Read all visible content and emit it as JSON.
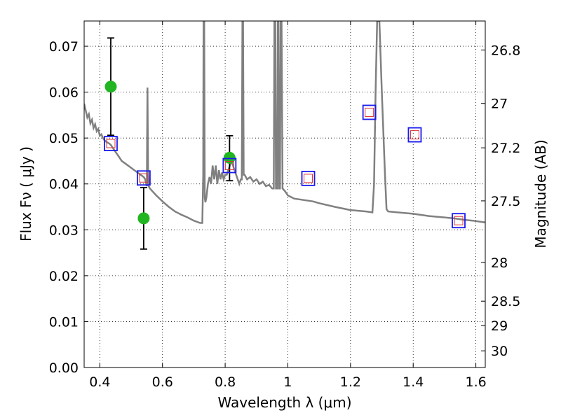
{
  "chart_data": {
    "type": "scatter",
    "title": "",
    "xlabel": "Wavelength  λ (μm)",
    "ylabel": "Flux  Fν  ( μJy )",
    "ylabel_right": "Magnitude (AB)",
    "xlim": [
      0.35,
      1.63
    ],
    "ylim": [
      0.0,
      0.0755
    ],
    "grid": true,
    "x_ticks": [
      0.4,
      0.6,
      0.8,
      1.0,
      1.2,
      1.4,
      1.6
    ],
    "x_tick_labels": [
      "0.4",
      "0.6",
      "0.8",
      "1",
      "1.2",
      "1.4",
      "1.6"
    ],
    "y_ticks": [
      0.0,
      0.01,
      0.02,
      0.03,
      0.04,
      0.05,
      0.06,
      0.07
    ],
    "y_tick_labels": [
      "0.00",
      "0.01",
      "0.02",
      "0.03",
      "0.04",
      "0.05",
      "0.06",
      "0.07"
    ],
    "mag_ticks": [
      26.8,
      27,
      27.2,
      27.5,
      28,
      28.5,
      29,
      30
    ],
    "mag_tick_labels": [
      "26.8",
      "27",
      "27.2",
      "27.5",
      "28",
      "28.5",
      "29",
      "30"
    ],
    "colors": {
      "model": "#808080",
      "observed": "#22b522",
      "model_box": "#1a1aee",
      "model_box_inner": "#dd3333",
      "errorbar": "#000000"
    },
    "series": [
      {
        "kind": "model_spectrum",
        "points": [
          [
            0.35,
            0.0575
          ],
          [
            0.355,
            0.056
          ],
          [
            0.36,
            0.0545
          ],
          [
            0.365,
            0.0552
          ],
          [
            0.37,
            0.0532
          ],
          [
            0.375,
            0.054
          ],
          [
            0.38,
            0.0522
          ],
          [
            0.385,
            0.053
          ],
          [
            0.39,
            0.0515
          ],
          [
            0.395,
            0.052
          ],
          [
            0.4,
            0.0505
          ],
          [
            0.405,
            0.0508
          ],
          [
            0.41,
            0.05
          ],
          [
            0.415,
            0.0495
          ],
          [
            0.42,
            0.0492
          ],
          [
            0.425,
            0.049
          ],
          [
            0.43,
            0.0488
          ],
          [
            0.435,
            0.0485
          ],
          [
            0.44,
            0.048
          ],
          [
            0.445,
            0.0475
          ],
          [
            0.45,
            0.047
          ],
          [
            0.455,
            0.0465
          ],
          [
            0.46,
            0.046
          ],
          [
            0.465,
            0.0455
          ],
          [
            0.47,
            0.045
          ],
          [
            0.48,
            0.0445
          ],
          [
            0.49,
            0.044
          ],
          [
            0.5,
            0.0435
          ],
          [
            0.51,
            0.043
          ],
          [
            0.52,
            0.0425
          ],
          [
            0.53,
            0.042
          ],
          [
            0.54,
            0.0415
          ],
          [
            0.545,
            0.041
          ],
          [
            0.548,
            0.04
          ],
          [
            0.55,
            0.0395
          ],
          [
            0.551,
            0.05
          ],
          [
            0.552,
            0.061
          ],
          [
            0.554,
            0.042
          ],
          [
            0.556,
            0.0395
          ],
          [
            0.56,
            0.039
          ],
          [
            0.58,
            0.0375
          ],
          [
            0.6,
            0.0362
          ],
          [
            0.62,
            0.035
          ],
          [
            0.64,
            0.034
          ],
          [
            0.66,
            0.0333
          ],
          [
            0.68,
            0.0327
          ],
          [
            0.7,
            0.032
          ],
          [
            0.72,
            0.0315
          ],
          [
            0.727,
            0.0315
          ],
          [
            0.73,
            0.042
          ],
          [
            0.731,
            0.0755
          ],
          [
            0.733,
            0.0755
          ],
          [
            0.735,
            0.037
          ],
          [
            0.737,
            0.036
          ],
          [
            0.74,
            0.037
          ],
          [
            0.745,
            0.04
          ],
          [
            0.75,
            0.0415
          ],
          [
            0.755,
            0.04
          ],
          [
            0.76,
            0.044
          ],
          [
            0.765,
            0.041
          ],
          [
            0.77,
            0.044
          ],
          [
            0.775,
            0.04
          ],
          [
            0.78,
            0.043
          ],
          [
            0.785,
            0.041
          ],
          [
            0.79,
            0.0425
          ],
          [
            0.795,
            0.041
          ],
          [
            0.8,
            0.042
          ],
          [
            0.805,
            0.042
          ],
          [
            0.81,
            0.043
          ],
          [
            0.815,
            0.044
          ],
          [
            0.82,
            0.045
          ],
          [
            0.825,
            0.044
          ],
          [
            0.83,
            0.043
          ],
          [
            0.835,
            0.042
          ],
          [
            0.84,
            0.041
          ],
          [
            0.845,
            0.04
          ],
          [
            0.85,
            0.041
          ],
          [
            0.853,
            0.041
          ],
          [
            0.855,
            0.0755
          ],
          [
            0.857,
            0.0755
          ],
          [
            0.859,
            0.042
          ],
          [
            0.862,
            0.042
          ],
          [
            0.87,
            0.041
          ],
          [
            0.88,
            0.0415
          ],
          [
            0.89,
            0.0405
          ],
          [
            0.9,
            0.041
          ],
          [
            0.91,
            0.04
          ],
          [
            0.92,
            0.0405
          ],
          [
            0.93,
            0.0395
          ],
          [
            0.94,
            0.0398
          ],
          [
            0.95,
            0.039
          ],
          [
            0.955,
            0.039
          ],
          [
            0.957,
            0.0755
          ],
          [
            0.96,
            0.0755
          ],
          [
            0.962,
            0.039
          ],
          [
            0.966,
            0.039
          ],
          [
            0.968,
            0.0755
          ],
          [
            0.97,
            0.0755
          ],
          [
            0.972,
            0.039
          ],
          [
            0.975,
            0.039
          ],
          [
            0.977,
            0.0755
          ],
          [
            0.98,
            0.0755
          ],
          [
            0.983,
            0.039
          ],
          [
            0.99,
            0.0385
          ],
          [
            1.0,
            0.0375
          ],
          [
            1.02,
            0.0368
          ],
          [
            1.05,
            0.0365
          ],
          [
            1.08,
            0.0362
          ],
          [
            1.1,
            0.0358
          ],
          [
            1.15,
            0.035
          ],
          [
            1.2,
            0.0343
          ],
          [
            1.25,
            0.034
          ],
          [
            1.27,
            0.0338
          ],
          [
            1.275,
            0.04
          ],
          [
            1.28,
            0.06
          ],
          [
            1.285,
            0.0755
          ],
          [
            1.292,
            0.0755
          ],
          [
            1.3,
            0.06
          ],
          [
            1.31,
            0.042
          ],
          [
            1.315,
            0.0345
          ],
          [
            1.32,
            0.034
          ],
          [
            1.35,
            0.0338
          ],
          [
            1.4,
            0.0335
          ],
          [
            1.45,
            0.033
          ],
          [
            1.5,
            0.0327
          ],
          [
            1.53,
            0.0325
          ],
          [
            1.56,
            0.0322
          ],
          [
            1.59,
            0.032
          ],
          [
            1.61,
            0.0318
          ],
          [
            1.63,
            0.0316
          ]
        ]
      },
      {
        "kind": "observed",
        "points": [
          {
            "x": 0.435,
            "y": 0.0612,
            "err_low": 0.0506,
            "err_high": 0.0718
          },
          {
            "x": 0.54,
            "y": 0.0325,
            "err_low": 0.0258,
            "err_high": 0.0392
          },
          {
            "x": 0.814,
            "y": 0.0457,
            "err_low": 0.0407,
            "err_high": 0.0505
          }
        ]
      },
      {
        "kind": "model_photometry",
        "points": [
          {
            "x": 0.435,
            "y": 0.0488
          },
          {
            "x": 0.54,
            "y": 0.0413
          },
          {
            "x": 0.814,
            "y": 0.044
          },
          {
            "x": 1.065,
            "y": 0.0412
          },
          {
            "x": 1.26,
            "y": 0.0556
          },
          {
            "x": 1.405,
            "y": 0.0507
          },
          {
            "x": 1.545,
            "y": 0.032
          }
        ]
      }
    ]
  }
}
